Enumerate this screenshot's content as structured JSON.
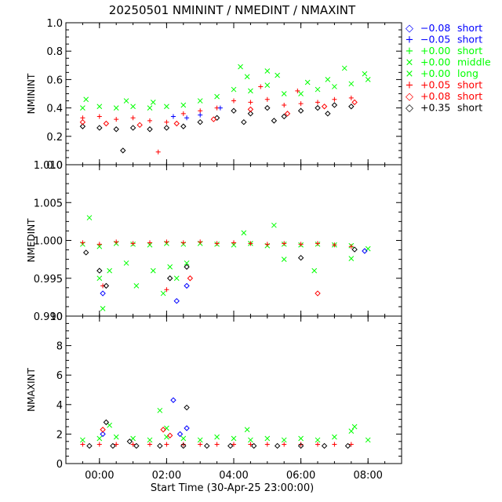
{
  "title": "20250501  NMININT  /  NMEDINT  /  NMAXINT",
  "x_axis": {
    "label": "Start Time (30-Apr-25 23:00:00)",
    "ticks": [
      {
        "v": 1.0,
        "label": "00:00"
      },
      {
        "v": 3.0,
        "label": "02:00"
      },
      {
        "v": 5.0,
        "label": "04:00"
      },
      {
        "v": 7.0,
        "label": "06:00"
      },
      {
        "v": 9.0,
        "label": "08:00"
      }
    ]
  },
  "legend": [
    {
      "symbol": "◇",
      "value": "−0.08",
      "kind": "short",
      "color": "#0000ff"
    },
    {
      "symbol": "+",
      "value": "−0.05",
      "kind": "short",
      "color": "#0000ff"
    },
    {
      "symbol": "+",
      "value": "+0.00",
      "kind": "short",
      "color": "#00ff00"
    },
    {
      "symbol": "×",
      "value": "+0.00",
      "kind": "middle",
      "color": "#00ff00"
    },
    {
      "symbol": "×",
      "value": "+0.00",
      "kind": "long",
      "color": "#00ff00"
    },
    {
      "symbol": "+",
      "value": "+0.05",
      "kind": "short",
      "color": "#ff0000"
    },
    {
      "symbol": "◇",
      "value": "+0.08",
      "kind": "short",
      "color": "#ff0000"
    },
    {
      "symbol": "◇",
      "value": "+0.35",
      "kind": "short",
      "color": "#000000"
    }
  ],
  "chart_data": [
    {
      "type": "scatter",
      "ylabel": "NMININT",
      "ylim": [
        0.0,
        1.0
      ],
      "xlim": [
        0.0,
        10.0
      ],
      "ticks": [
        {
          "v": 0.0,
          "label": "0.0"
        },
        {
          "v": 0.2,
          "label": "0.2"
        },
        {
          "v": 0.4,
          "label": "0.4"
        },
        {
          "v": 0.6,
          "label": "0.6"
        },
        {
          "v": 0.8,
          "label": "0.8"
        },
        {
          "v": 1.0,
          "label": "1.0"
        }
      ],
      "series": [
        {
          "name": "+0.00 long",
          "color": "#00ff00",
          "marker": "x",
          "points": [
            [
              0.5,
              0.4
            ],
            [
              1.0,
              0.41
            ],
            [
              1.5,
              0.4
            ],
            [
              2.0,
              0.41
            ],
            [
              2.5,
              0.4
            ],
            [
              3.0,
              0.41
            ],
            [
              3.5,
              0.42
            ],
            [
              4.0,
              0.45
            ],
            [
              4.5,
              0.48
            ],
            [
              5.0,
              0.53
            ],
            [
              5.5,
              0.52
            ],
            [
              6.0,
              0.56
            ],
            [
              6.5,
              0.5
            ],
            [
              7.0,
              0.5
            ],
            [
              7.5,
              0.53
            ],
            [
              8.0,
              0.55
            ],
            [
              8.5,
              0.57
            ],
            [
              9.0,
              0.6
            ],
            [
              0.6,
              0.46
            ],
            [
              1.8,
              0.45
            ],
            [
              2.6,
              0.44
            ],
            [
              5.2,
              0.69
            ],
            [
              5.4,
              0.62
            ],
            [
              6.0,
              0.66
            ],
            [
              6.3,
              0.63
            ],
            [
              7.2,
              0.58
            ],
            [
              7.8,
              0.6
            ],
            [
              8.3,
              0.68
            ],
            [
              8.9,
              0.64
            ]
          ]
        },
        {
          "name": "+0.05 short",
          "color": "#ff0000",
          "marker": "+",
          "points": [
            [
              0.5,
              0.33
            ],
            [
              1.0,
              0.34
            ],
            [
              1.5,
              0.32
            ],
            [
              2.0,
              0.33
            ],
            [
              2.5,
              0.31
            ],
            [
              3.0,
              0.3
            ],
            [
              3.5,
              0.36
            ],
            [
              4.0,
              0.38
            ],
            [
              4.5,
              0.4
            ],
            [
              5.0,
              0.45
            ],
            [
              5.5,
              0.44
            ],
            [
              6.0,
              0.46
            ],
            [
              6.5,
              0.42
            ],
            [
              7.0,
              0.43
            ],
            [
              7.5,
              0.44
            ],
            [
              8.0,
              0.46
            ],
            [
              8.5,
              0.47
            ],
            [
              2.75,
              0.09
            ],
            [
              5.8,
              0.55
            ],
            [
              6.9,
              0.52
            ]
          ]
        },
        {
          "name": "-0.05 short",
          "color": "#0000ff",
          "marker": "+",
          "points": [
            [
              3.2,
              0.34
            ],
            [
              3.6,
              0.33
            ],
            [
              4.0,
              0.35
            ],
            [
              4.6,
              0.4
            ]
          ]
        },
        {
          "name": "+0.35 short",
          "color": "#000000",
          "marker": "diamond",
          "points": [
            [
              0.5,
              0.27
            ],
            [
              1.0,
              0.26
            ],
            [
              1.5,
              0.25
            ],
            [
              2.0,
              0.26
            ],
            [
              2.5,
              0.25
            ],
            [
              3.0,
              0.26
            ],
            [
              3.5,
              0.27
            ],
            [
              4.0,
              0.3
            ],
            [
              4.5,
              0.33
            ],
            [
              5.0,
              0.38
            ],
            [
              5.5,
              0.36
            ],
            [
              6.0,
              0.4
            ],
            [
              6.5,
              0.34
            ],
            [
              7.0,
              0.38
            ],
            [
              7.5,
              0.4
            ],
            [
              8.0,
              0.42
            ],
            [
              8.5,
              0.41
            ],
            [
              1.7,
              0.1
            ],
            [
              5.3,
              0.3
            ],
            [
              6.2,
              0.31
            ],
            [
              7.8,
              0.36
            ]
          ]
        },
        {
          "name": "+0.08 short",
          "color": "#ff0000",
          "marker": "diamond",
          "points": [
            [
              0.5,
              0.3
            ],
            [
              1.2,
              0.29
            ],
            [
              2.2,
              0.28
            ],
            [
              3.3,
              0.29
            ],
            [
              4.4,
              0.32
            ],
            [
              5.5,
              0.39
            ],
            [
              6.6,
              0.36
            ],
            [
              7.7,
              0.41
            ],
            [
              8.6,
              0.44
            ]
          ]
        }
      ]
    },
    {
      "type": "scatter",
      "ylabel": "NMEDINT",
      "ylim": [
        0.99,
        1.01
      ],
      "xlim": [
        0.0,
        10.0
      ],
      "ticks": [
        {
          "v": 0.99,
          "label": "0.990"
        },
        {
          "v": 0.995,
          "label": "0.995"
        },
        {
          "v": 1.0,
          "label": "1.000"
        },
        {
          "v": 1.005,
          "label": "1.005"
        },
        {
          "v": 1.01,
          "label": "1.010"
        }
      ],
      "series": [
        {
          "name": "+0.00 long",
          "color": "#00ff00",
          "marker": "x",
          "points": [
            [
              0.5,
              0.9995
            ],
            [
              1.0,
              0.9992
            ],
            [
              1.5,
              0.9996
            ],
            [
              2.0,
              0.9995
            ],
            [
              2.5,
              0.9994
            ],
            [
              3.0,
              0.9996
            ],
            [
              3.5,
              0.9995
            ],
            [
              4.0,
              0.9996
            ],
            [
              4.5,
              0.9995
            ],
            [
              5.0,
              0.9994
            ],
            [
              5.5,
              0.9996
            ],
            [
              6.0,
              0.9993
            ],
            [
              6.5,
              0.9995
            ],
            [
              7.0,
              0.9994
            ],
            [
              7.5,
              0.9995
            ],
            [
              8.0,
              0.9994
            ],
            [
              8.5,
              0.9993
            ],
            [
              9.0,
              0.9989
            ],
            [
              0.7,
              1.003
            ],
            [
              1.0,
              0.995
            ],
            [
              1.1,
              0.991
            ],
            [
              1.3,
              0.996
            ],
            [
              1.8,
              0.997
            ],
            [
              2.1,
              0.994
            ],
            [
              2.6,
              0.996
            ],
            [
              2.9,
              0.993
            ],
            [
              3.1,
              0.9965
            ],
            [
              3.3,
              0.995
            ],
            [
              3.6,
              0.997
            ],
            [
              5.3,
              1.001
            ],
            [
              6.2,
              1.002
            ],
            [
              6.5,
              0.9975
            ],
            [
              7.4,
              0.996
            ],
            [
              8.5,
              0.9976
            ]
          ]
        },
        {
          "name": "+0.05 short",
          "color": "#ff0000",
          "marker": "+",
          "points": [
            [
              0.5,
              0.9997
            ],
            [
              1.0,
              0.9995
            ],
            [
              1.5,
              0.9998
            ],
            [
              2.0,
              0.9996
            ],
            [
              2.5,
              0.9997
            ],
            [
              3.0,
              0.9998
            ],
            [
              3.5,
              0.9997
            ],
            [
              4.0,
              0.9998
            ],
            [
              4.5,
              0.9996
            ],
            [
              5.0,
              0.9997
            ],
            [
              5.5,
              0.9996
            ],
            [
              6.0,
              0.9995
            ],
            [
              6.5,
              0.9996
            ],
            [
              7.0,
              0.9995
            ],
            [
              7.5,
              0.9996
            ],
            [
              8.0,
              0.9994
            ],
            [
              8.5,
              0.9992
            ],
            [
              1.1,
              0.994
            ],
            [
              3.0,
              0.9935
            ]
          ]
        },
        {
          "name": "+0.35 short",
          "color": "#000000",
          "marker": "diamond",
          "points": [
            [
              0.6,
              0.9984
            ],
            [
              1.0,
              0.996
            ],
            [
              1.2,
              0.994
            ],
            [
              3.1,
              0.995
            ],
            [
              3.6,
              0.9965
            ],
            [
              7.0,
              0.9977
            ],
            [
              8.6,
              0.9988
            ]
          ]
        },
        {
          "name": "-0.08 short",
          "color": "#0000ff",
          "marker": "diamond",
          "points": [
            [
              1.1,
              0.993
            ],
            [
              3.3,
              0.992
            ],
            [
              3.6,
              0.994
            ],
            [
              8.9,
              0.9986
            ]
          ]
        },
        {
          "name": "+0.08 short",
          "color": "#ff0000",
          "marker": "diamond",
          "points": [
            [
              3.7,
              0.995
            ],
            [
              7.5,
              0.993
            ]
          ]
        }
      ]
    },
    {
      "type": "scatter",
      "ylabel": "NMAXINT",
      "ylim": [
        0,
        10
      ],
      "xlim": [
        0.0,
        10.0
      ],
      "ticks": [
        {
          "v": 0,
          "label": "0"
        },
        {
          "v": 2,
          "label": "2"
        },
        {
          "v": 4,
          "label": "4"
        },
        {
          "v": 6,
          "label": "6"
        },
        {
          "v": 8,
          "label": "8"
        },
        {
          "v": 10,
          "label": "10"
        }
      ],
      "series": [
        {
          "name": "+0.00 long",
          "color": "#00ff00",
          "marker": "x",
          "points": [
            [
              0.5,
              1.6
            ],
            [
              1.0,
              1.7
            ],
            [
              1.5,
              1.8
            ],
            [
              2.0,
              1.7
            ],
            [
              2.5,
              1.6
            ],
            [
              3.0,
              1.8
            ],
            [
              3.5,
              1.7
            ],
            [
              4.0,
              1.6
            ],
            [
              4.5,
              1.8
            ],
            [
              5.0,
              1.7
            ],
            [
              5.5,
              1.6
            ],
            [
              6.0,
              1.7
            ],
            [
              6.5,
              1.6
            ],
            [
              7.0,
              1.7
            ],
            [
              7.5,
              1.6
            ],
            [
              8.0,
              1.8
            ],
            [
              8.5,
              2.2
            ],
            [
              9.0,
              1.6
            ],
            [
              1.3,
              2.6
            ],
            [
              2.8,
              3.6
            ],
            [
              3.0,
              2.4
            ],
            [
              5.4,
              2.3
            ],
            [
              8.6,
              2.5
            ]
          ]
        },
        {
          "name": "+0.05 short",
          "color": "#ff0000",
          "marker": "+",
          "points": [
            [
              0.5,
              1.3
            ],
            [
              1.0,
              1.3
            ],
            [
              1.5,
              1.3
            ],
            [
              2.0,
              1.3
            ],
            [
              2.5,
              1.3
            ],
            [
              3.0,
              1.3
            ],
            [
              3.5,
              1.3
            ],
            [
              4.0,
              1.3
            ],
            [
              4.5,
              1.3
            ],
            [
              5.0,
              1.3
            ],
            [
              5.5,
              1.3
            ],
            [
              6.0,
              1.3
            ],
            [
              6.5,
              1.3
            ],
            [
              7.0,
              1.3
            ],
            [
              7.5,
              1.3
            ],
            [
              8.0,
              1.3
            ],
            [
              8.5,
              1.3
            ]
          ]
        },
        {
          "name": "+0.35 short",
          "color": "#000000",
          "marker": "diamond",
          "points": [
            [
              0.7,
              1.2
            ],
            [
              1.4,
              1.2
            ],
            [
              2.1,
              1.2
            ],
            [
              2.8,
              1.2
            ],
            [
              3.5,
              1.2
            ],
            [
              4.2,
              1.2
            ],
            [
              4.9,
              1.2
            ],
            [
              5.6,
              1.2
            ],
            [
              6.3,
              1.2
            ],
            [
              7.0,
              1.2
            ],
            [
              7.7,
              1.2
            ],
            [
              8.4,
              1.2
            ],
            [
              1.2,
              2.8
            ],
            [
              3.6,
              3.8
            ],
            [
              1.9,
              1.5
            ]
          ]
        },
        {
          "name": "-0.08 short",
          "color": "#0000ff",
          "marker": "diamond",
          "points": [
            [
              3.2,
              4.3
            ],
            [
              3.6,
              2.4
            ],
            [
              3.4,
              2.0
            ],
            [
              1.1,
              2.0
            ]
          ]
        },
        {
          "name": "+0.08 short",
          "color": "#ff0000",
          "marker": "diamond",
          "points": [
            [
              2.9,
              2.3
            ],
            [
              3.1,
              1.9
            ],
            [
              1.1,
              2.3
            ]
          ]
        }
      ]
    }
  ]
}
